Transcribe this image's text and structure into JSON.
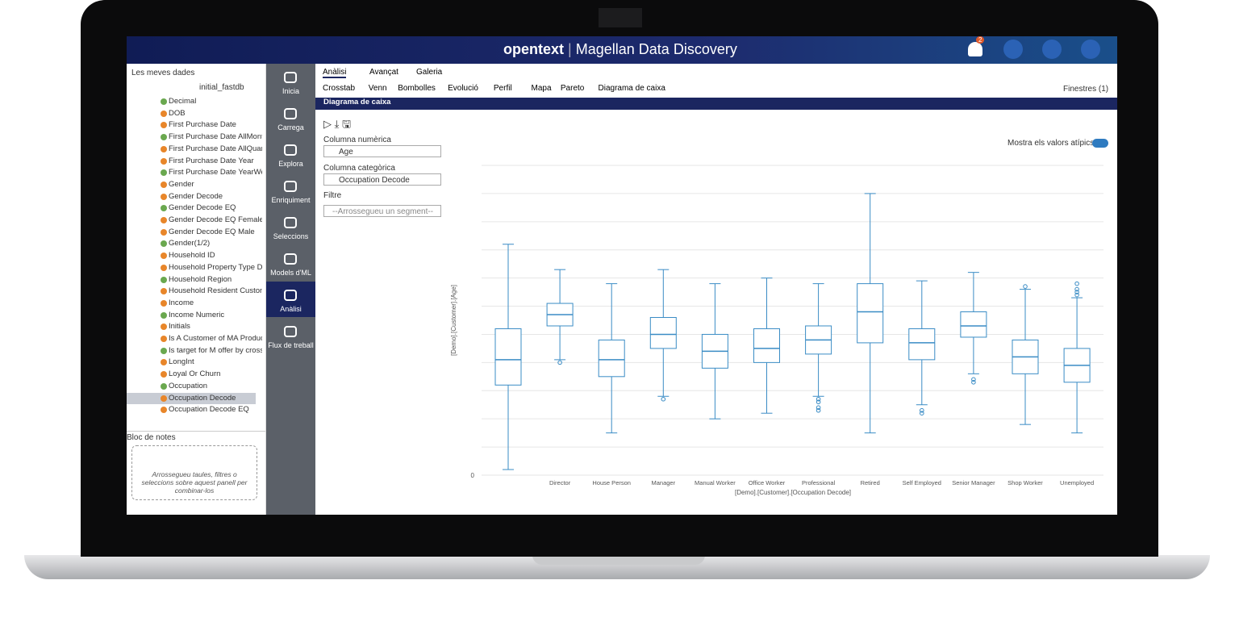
{
  "header": {
    "brand": "opentext",
    "product": "Magellan",
    "subtitle": "Data Discovery",
    "badge": "2"
  },
  "sidebar": {
    "source": "Les meves dades",
    "database": "initial_fastdb",
    "items": [
      "Decimal",
      "DOB",
      "First Purchase Date",
      "First Purchase Date AllMont",
      "First Purchase Date AllQuar",
      "First Purchase Date Year",
      "First Purchase Date YearWe",
      "Gender",
      "Gender Decode",
      "Gender Decode EQ",
      "Gender Decode EQ Female",
      "Gender Decode EQ Male",
      "Gender(1/2)",
      "Household ID",
      "Household Property Type D",
      "Household Region",
      "Household Resident Custon",
      "Income",
      "Income Numeric",
      "Initials",
      "Is A Customer of MA Produc",
      "Is target for M offer by cross",
      "LongInt",
      "Loyal Or Churn",
      "Occupation",
      "Occupation Decode",
      "Occupation Decode EQ"
    ],
    "notes_title": "Bloc de notes",
    "notes_hint": "Arrossegueu taules, filtres o seleccions sobre aquest panell per combinar-los"
  },
  "nav": [
    "Inicia",
    "Carrega",
    "Explora",
    "Enriquiment",
    "Seleccions",
    "Models d'ML",
    "Anàlisi",
    "Flux de treball"
  ],
  "tabs": [
    "Anàlisi",
    "Avançat",
    "Galeria"
  ],
  "subtabs": [
    "Crosstab",
    "Venn",
    "Bombolles",
    "Evolució",
    "Perfil",
    "Mapa",
    "Pareto",
    "Diagrama de caixa"
  ],
  "windows": "Finestres (1)",
  "panel": {
    "title": "Diagrama de caixa",
    "numeric_label": "Columna numèrica",
    "numeric_value": "Age",
    "category_label": "Columna categòrica",
    "category_value": "Occupation Decode",
    "filter_label": "Filtre",
    "filter_placeholder": "--Arrossegueu un segment--",
    "outliers_toggle": "Mostra els valors atípics"
  },
  "chart_data": {
    "type": "box",
    "x_label": "[Demo].[Customer].[Occupation Decode]",
    "y_label": "[Demo].[Customer].[Age]",
    "color": "#3a8cc5",
    "categories": [
      null,
      "Director",
      "House Person",
      "Manager",
      "Manual Worker",
      "Office Worker",
      "Professional",
      "Retired",
      "Self Employed",
      "Senior Manager",
      "Shop Worker",
      "Unemployed"
    ],
    "min": [
      2,
      41,
      15,
      28,
      20,
      22,
      28,
      15,
      25,
      36,
      18,
      15
    ],
    "q1": [
      32,
      53,
      35,
      45,
      38,
      40,
      43,
      47,
      41,
      49,
      36,
      33
    ],
    "median": [
      41,
      57,
      41,
      50,
      44,
      45,
      48,
      58,
      47,
      53,
      42,
      39
    ],
    "q3": [
      52,
      61,
      48,
      56,
      50,
      52,
      53,
      68,
      52,
      58,
      48,
      45
    ],
    "max": [
      82,
      73,
      68,
      73,
      68,
      70,
      68,
      100,
      69,
      72,
      66,
      63
    ],
    "outliers": [
      [],
      [
        40
      ],
      [],
      [
        27
      ],
      [],
      [],
      [
        27,
        26,
        24,
        23
      ],
      [],
      [
        23,
        22
      ],
      [
        34,
        33
      ],
      [
        67
      ],
      [
        68,
        66,
        65,
        64
      ]
    ],
    "ylim": [
      0,
      110
    ],
    "yticks": [
      0
    ],
    "grid_values": [
      10,
      20,
      30,
      40,
      50,
      60,
      70,
      80,
      90,
      100,
      110
    ],
    "grid": true
  }
}
